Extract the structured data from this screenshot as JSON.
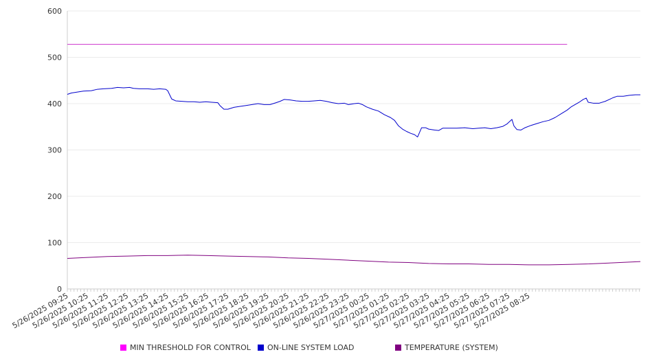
{
  "chart_data": {
    "type": "line",
    "y_ticks": [
      0,
      100,
      200,
      300,
      400,
      500,
      600
    ],
    "ylim": [
      0,
      600
    ],
    "x_tick_labels": [
      "5/26/2025 09:25",
      "5/26/2025 10:25",
      "5/26/2025 11:25",
      "5/26/2025 12:25",
      "5/26/2025 13:25",
      "5/26/2025 14:25",
      "5/26/2025 15:25",
      "5/26/2025 16:25",
      "5/26/2025 17:25",
      "5/26/2025 18:25",
      "5/26/2025 19:25",
      "5/26/2025 20:25",
      "5/26/2025 21:25",
      "5/26/2025 22:25",
      "5/26/2025 23:25",
      "5/27/2025 00:25",
      "5/27/2025 01:25",
      "5/27/2025 02:25",
      "5/27/2025 03:25",
      "5/27/2025 04:25",
      "5/27/2025 05:25",
      "5/27/2025 06:25",
      "5/27/2025 07:25",
      "5/27/2025 08:25"
    ],
    "grid": true,
    "legend_position": "bottom",
    "series": [
      {
        "name": "MIN THRESHOLD FOR CONTROL",
        "color": "#CC33CC",
        "legend_color": "#FF00FF",
        "points": [
          [
            0,
            528
          ],
          [
            24.9,
            528
          ]
        ]
      },
      {
        "name": "ON-LINE SYSTEM LOAD",
        "color": "#0000CC",
        "legend_color": "#0000CC",
        "points": [
          [
            0,
            420
          ],
          [
            0.2,
            423
          ],
          [
            0.5,
            425
          ],
          [
            0.8,
            427
          ],
          [
            1.2,
            428
          ],
          [
            1.5,
            431
          ],
          [
            1.8,
            432
          ],
          [
            2.2,
            433
          ],
          [
            2.5,
            435
          ],
          [
            2.8,
            434
          ],
          [
            3.1,
            435
          ],
          [
            3.3,
            433
          ],
          [
            3.6,
            432
          ],
          [
            4.0,
            432
          ],
          [
            4.3,
            431
          ],
          [
            4.6,
            432
          ],
          [
            4.9,
            431
          ],
          [
            5.0,
            428
          ],
          [
            5.2,
            410
          ],
          [
            5.4,
            406
          ],
          [
            5.7,
            405
          ],
          [
            6.0,
            404
          ],
          [
            6.3,
            404
          ],
          [
            6.6,
            403
          ],
          [
            6.9,
            404
          ],
          [
            7.2,
            403
          ],
          [
            7.5,
            402
          ],
          [
            7.6,
            396
          ],
          [
            7.8,
            388
          ],
          [
            8.0,
            388
          ],
          [
            8.3,
            392
          ],
          [
            8.6,
            394
          ],
          [
            8.9,
            396
          ],
          [
            9.2,
            398
          ],
          [
            9.5,
            400
          ],
          [
            9.8,
            398
          ],
          [
            10.1,
            398
          ],
          [
            10.4,
            402
          ],
          [
            10.6,
            405
          ],
          [
            10.8,
            409
          ],
          [
            11.1,
            408
          ],
          [
            11.4,
            406
          ],
          [
            11.7,
            405
          ],
          [
            12.0,
            405
          ],
          [
            12.3,
            406
          ],
          [
            12.6,
            407
          ],
          [
            12.9,
            405
          ],
          [
            13.2,
            402
          ],
          [
            13.5,
            400
          ],
          [
            13.8,
            401
          ],
          [
            14.0,
            398
          ],
          [
            14.3,
            400
          ],
          [
            14.5,
            401
          ],
          [
            14.7,
            398
          ],
          [
            14.9,
            393
          ],
          [
            15.2,
            388
          ],
          [
            15.5,
            384
          ],
          [
            15.8,
            376
          ],
          [
            16.1,
            370
          ],
          [
            16.3,
            364
          ],
          [
            16.5,
            352
          ],
          [
            16.7,
            345
          ],
          [
            16.9,
            340
          ],
          [
            17.1,
            336
          ],
          [
            17.3,
            333
          ],
          [
            17.45,
            328
          ],
          [
            17.55,
            338
          ],
          [
            17.65,
            348
          ],
          [
            17.85,
            348
          ],
          [
            18.0,
            345
          ],
          [
            18.3,
            343
          ],
          [
            18.5,
            342
          ],
          [
            18.7,
            347
          ],
          [
            19.0,
            347
          ],
          [
            19.4,
            347
          ],
          [
            19.8,
            348
          ],
          [
            20.2,
            346
          ],
          [
            20.5,
            347
          ],
          [
            20.8,
            348
          ],
          [
            21.1,
            346
          ],
          [
            21.4,
            348
          ],
          [
            21.7,
            351
          ],
          [
            21.9,
            356
          ],
          [
            22.0,
            360
          ],
          [
            22.15,
            366
          ],
          [
            22.25,
            352
          ],
          [
            22.4,
            344
          ],
          [
            22.6,
            343
          ],
          [
            22.8,
            348
          ],
          [
            23.1,
            353
          ],
          [
            23.4,
            357
          ],
          [
            23.7,
            361
          ],
          [
            24.0,
            364
          ],
          [
            24.3,
            370
          ],
          [
            24.6,
            378
          ],
          [
            24.9,
            386
          ],
          [
            25.1,
            393
          ],
          [
            25.3,
            398
          ],
          [
            25.5,
            403
          ],
          [
            25.7,
            409
          ],
          [
            25.85,
            412
          ],
          [
            25.95,
            403
          ],
          [
            26.2,
            401
          ],
          [
            26.5,
            401
          ],
          [
            26.8,
            405
          ],
          [
            27.0,
            409
          ],
          [
            27.2,
            413
          ],
          [
            27.4,
            416
          ],
          [
            27.7,
            416
          ],
          [
            28.0,
            418
          ],
          [
            28.3,
            419
          ],
          [
            28.55,
            419
          ]
        ]
      },
      {
        "name": "TEMPERATURE (SYSTEM)",
        "color": "#7F007F",
        "legend_color": "#800080",
        "points": [
          [
            0,
            66
          ],
          [
            1.0,
            68
          ],
          [
            2.0,
            70
          ],
          [
            3.0,
            71
          ],
          [
            4.0,
            72
          ],
          [
            5.0,
            72
          ],
          [
            6.0,
            73
          ],
          [
            7.0,
            72
          ],
          [
            8.0,
            71
          ],
          [
            9.0,
            70
          ],
          [
            10.0,
            69
          ],
          [
            11.0,
            67
          ],
          [
            12.0,
            66
          ],
          [
            13.0,
            64
          ],
          [
            14.0,
            62
          ],
          [
            15.0,
            60
          ],
          [
            16.0,
            58
          ],
          [
            17.0,
            57
          ],
          [
            18.0,
            55
          ],
          [
            19.0,
            54
          ],
          [
            20.0,
            54
          ],
          [
            21.0,
            53
          ],
          [
            22.0,
            53
          ],
          [
            23.0,
            52
          ],
          [
            24.0,
            52
          ],
          [
            25.0,
            53
          ],
          [
            26.0,
            54
          ],
          [
            27.0,
            56
          ],
          [
            28.0,
            58
          ],
          [
            28.55,
            59
          ]
        ]
      }
    ]
  }
}
